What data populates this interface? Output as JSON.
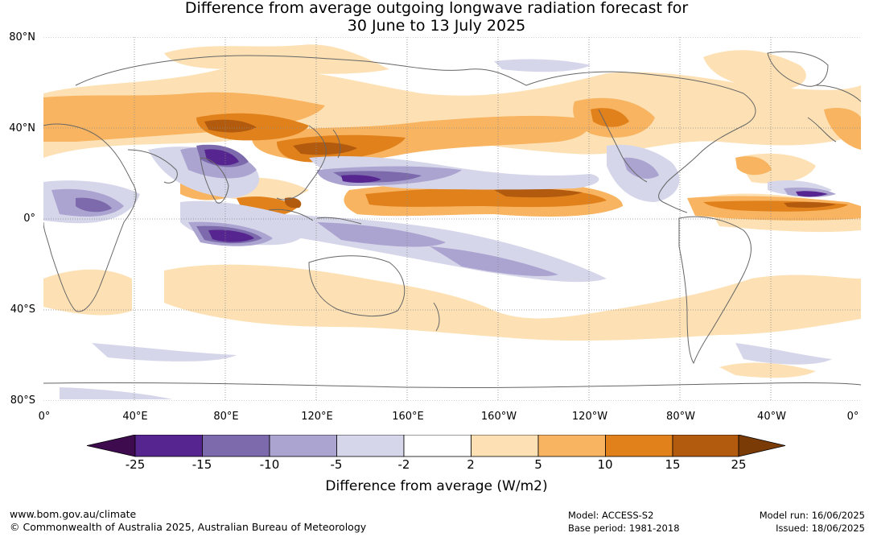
{
  "title_line1": "Difference from average outgoing longwave radiation forecast for",
  "title_line2": "30 June to 13 July 2025",
  "lat_labels": [
    "80°N",
    "40°N",
    "0°",
    "40°S",
    "80°S"
  ],
  "lon_labels": [
    "0°",
    "40°E",
    "80°E",
    "120°E",
    "160°E",
    "160°W",
    "120°W",
    "80°W",
    "40°W",
    "0°"
  ],
  "colorbar": {
    "ticks": [
      "-25",
      "-15",
      "-10",
      "-5",
      "-2",
      "2",
      "5",
      "10",
      "15",
      "25"
    ],
    "colors": [
      "#3d0b4e",
      "#562590",
      "#7c6aac",
      "#aba4d0",
      "#d6d6ea",
      "#ffffff",
      "#fde1b4",
      "#f8b460",
      "#e1811c",
      "#b25b0f",
      "#7a3b06"
    ],
    "label": "Difference from average (W/m2)"
  },
  "footer": {
    "left_line1": "www.bom.gov.au/climate",
    "left_line2": "© Commonwealth of Australia 2025, Australian Bureau of Meteorology",
    "mid_line1": "Model: ACCESS-S2",
    "mid_line2": "Base period: 1981-2018",
    "right_line1": "Model run: 16/06/2025",
    "right_line2": "Issued: 18/06/2025"
  }
}
